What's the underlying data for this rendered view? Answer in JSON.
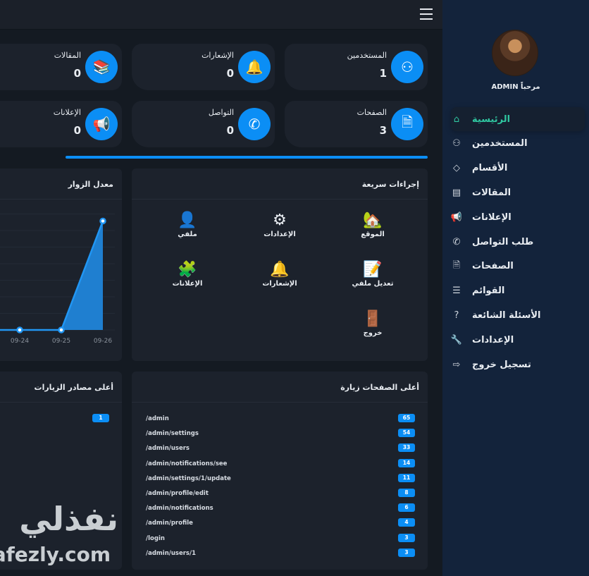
{
  "topbar": {
    "menu_icon": "hamburger-icon"
  },
  "sidebar": {
    "welcome": "مرحباً ADMIN",
    "items": [
      {
        "label": "الرئيسية",
        "icon": "home-icon",
        "active": true
      },
      {
        "label": "المستخدمين",
        "icon": "users-icon"
      },
      {
        "label": "الأقسام",
        "icon": "tag-icon"
      },
      {
        "label": "المقالات",
        "icon": "newspaper-icon"
      },
      {
        "label": "الإعلانات",
        "icon": "megaphone-icon"
      },
      {
        "label": "طلب التواصل",
        "icon": "phone-icon"
      },
      {
        "label": "الصفحات",
        "icon": "document-icon"
      },
      {
        "label": "القوائم",
        "icon": "list-icon"
      },
      {
        "label": "الأسئلة الشائعة",
        "icon": "question-icon"
      },
      {
        "label": "الإعدادات",
        "icon": "wrench-icon"
      },
      {
        "label": "تسجيل خروج",
        "icon": "logout-icon"
      }
    ]
  },
  "stats": [
    {
      "label": "المستخدمين",
      "value": "1",
      "icon": "users-icon"
    },
    {
      "label": "الإشعارات",
      "value": "0",
      "icon": "bell-icon"
    },
    {
      "label": "المقالات",
      "value": "0",
      "icon": "books-icon"
    },
    {
      "label": "الصفحات",
      "value": "3",
      "icon": "document-icon"
    },
    {
      "label": "التواصل",
      "value": "0",
      "icon": "phone-icon"
    },
    {
      "label": "الإعلانات",
      "value": "0",
      "icon": "megaphone-icon"
    }
  ],
  "colors": {
    "accent": "#0b8ef5",
    "active": "#2fc6a0",
    "sidebar": "#13233b",
    "card": "#1c222c"
  },
  "quick_actions": {
    "title": "إجراءات سريعة",
    "items": [
      {
        "label": "الموقع",
        "icon": "house-icon"
      },
      {
        "label": "الإعدادات",
        "icon": "gears-icon"
      },
      {
        "label": "ملفي",
        "icon": "person-icon"
      },
      {
        "label": "تعديل ملفي",
        "icon": "edit-document-icon"
      },
      {
        "label": "الإشعارات",
        "icon": "bell-icon"
      },
      {
        "label": "الإعلانات",
        "icon": "ads-icon"
      },
      {
        "label": "خروج",
        "icon": "exit-door-icon"
      }
    ]
  },
  "visitors": {
    "title": "معدل الزوار"
  },
  "chart_data": {
    "type": "area",
    "categories": [
      "09-24",
      "09-25",
      "09-26"
    ],
    "values": [
      0,
      0,
      1
    ],
    "ylim": [
      0,
      1.1
    ],
    "grid": true
  },
  "top_pages": {
    "title": "أعلى الصفحات زيارة",
    "rows": [
      {
        "path": "/admin",
        "count": "65"
      },
      {
        "path": "/admin/settings",
        "count": "54"
      },
      {
        "path": "/admin/users",
        "count": "33"
      },
      {
        "path": "/admin/notifications/see",
        "count": "14"
      },
      {
        "path": "/admin/settings/1/update",
        "count": "11"
      },
      {
        "path": "/admin/profile/edit",
        "count": "8"
      },
      {
        "path": "/admin/notifications",
        "count": "6"
      },
      {
        "path": "/admin/profile",
        "count": "4"
      },
      {
        "path": "/login",
        "count": "3"
      },
      {
        "path": "/admin/users/1",
        "count": "3"
      }
    ]
  },
  "top_sources": {
    "title": "أعلى مصادر الزيارات",
    "rows": [
      {
        "count": "1"
      }
    ]
  },
  "watermark": {
    "arabic": "نفذلي",
    "latin": "nafezly.com"
  }
}
